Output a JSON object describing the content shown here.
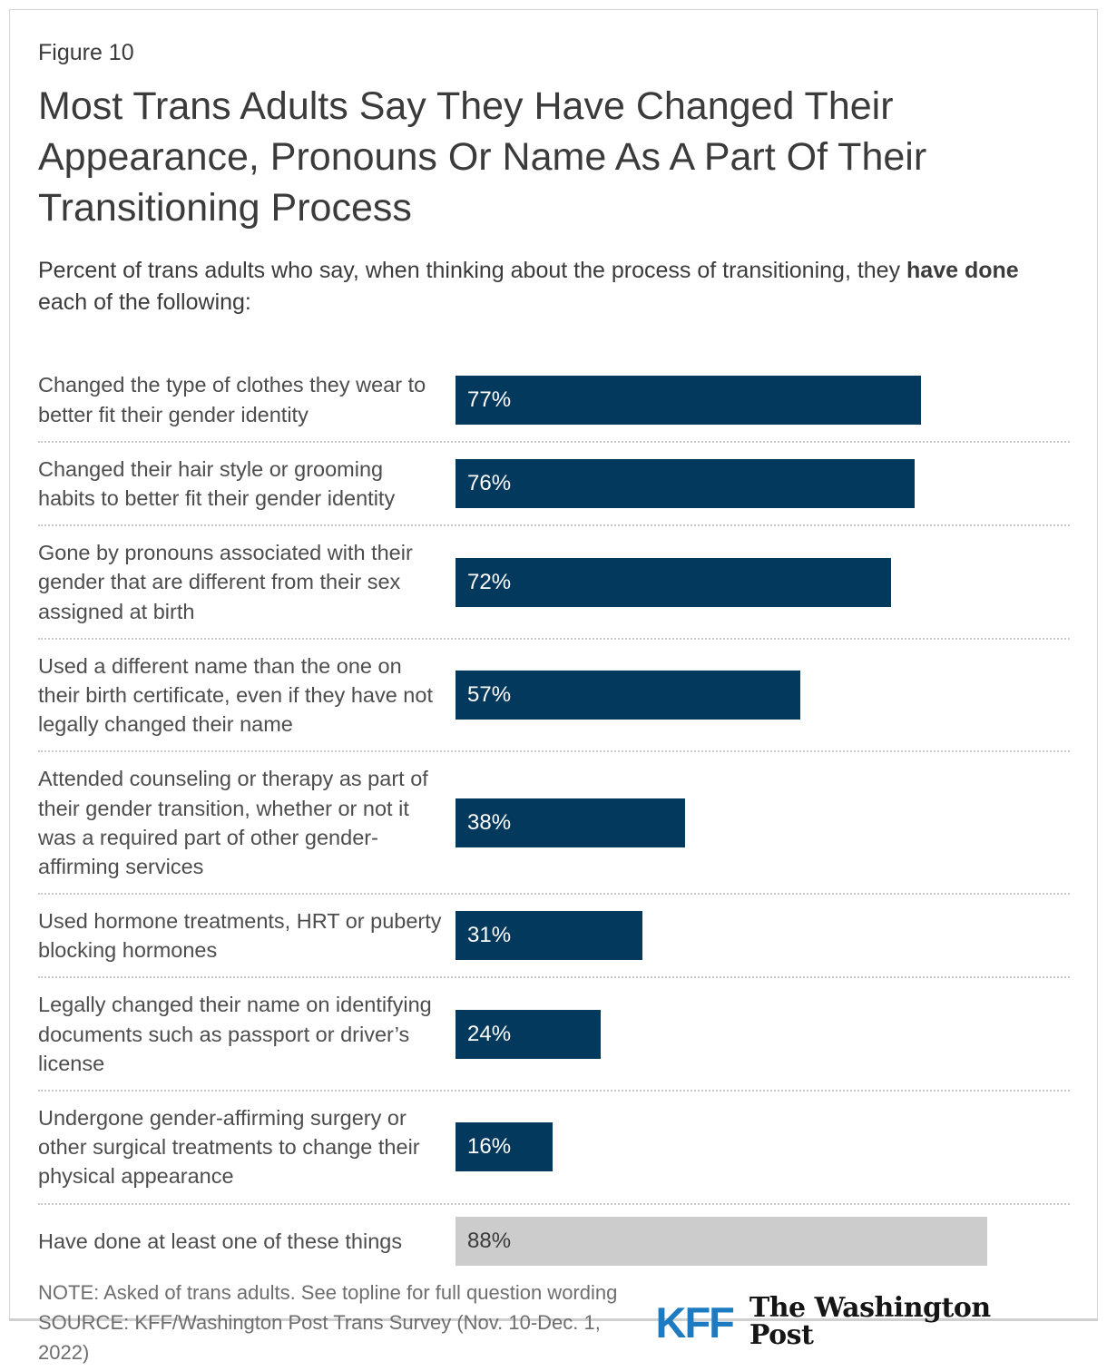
{
  "figure_label": "Figure 10",
  "title": "Most Trans Adults Say They Have Changed Their Appearance, Pronouns Or Name As A Part Of Their Transitioning Process",
  "subtitle": {
    "prefix": "Percent of trans adults who say, when thinking about the process of transitioning, they ",
    "bold": "have done",
    "suffix": " each of the following:"
  },
  "chart_data": {
    "type": "bar",
    "orientation": "horizontal",
    "unit": "%",
    "xlim": [
      0,
      100
    ],
    "grid": false,
    "title": "Most Trans Adults Say They Have Changed Their Appearance, Pronouns Or Name As A Part Of Their Transitioning Process",
    "categories": [
      "Changed the type of clothes they wear to better fit their gender identity",
      "Changed their hair style or grooming habits to better fit their gender identity",
      "Gone by pronouns associated with their gender that are different from their sex assigned at birth",
      "Used a different name than the one on their birth certificate, even if they have not legally changed their name",
      "Attended counseling or therapy as part of their gender transition, whether or not it was a required part of other gender-affirming services",
      "Used hormone treatments, HRT or puberty blocking hormones",
      "Legally changed their name on identifying documents such as passport or driver’s license",
      "Undergone gender-affirming surgery or other surgical treatments to change their physical appearance",
      "Have done at least one of these things"
    ],
    "values": [
      77,
      76,
      72,
      57,
      38,
      31,
      24,
      16,
      88
    ],
    "rows": [
      {
        "label": "Changed the type of clothes they wear to better fit their gender identity",
        "value": 77,
        "display": "77%",
        "variant": "default"
      },
      {
        "label": "Changed their hair style or grooming habits to better fit their gender identity",
        "value": 76,
        "display": "76%",
        "variant": "default"
      },
      {
        "label": "Gone by pronouns associated with their gender that are different from their sex assigned at birth",
        "value": 72,
        "display": "72%",
        "variant": "default"
      },
      {
        "label": "Used a different name than the one on their birth certificate, even if they have not legally changed their name",
        "value": 57,
        "display": "57%",
        "variant": "default"
      },
      {
        "label": "Attended counseling or therapy as part of their gender transition, whether or not it was a required part of other gender-affirming services",
        "value": 38,
        "display": "38%",
        "variant": "default"
      },
      {
        "label": "Used hormone treatments, HRT or puberty blocking hormones",
        "value": 31,
        "display": "31%",
        "variant": "default"
      },
      {
        "label": "Legally changed their name on identifying documents such as passport or driver’s license",
        "value": 24,
        "display": "24%",
        "variant": "default"
      },
      {
        "label": "Undergone gender-affirming surgery or other surgical treatments to change their physical appearance",
        "value": 16,
        "display": "16%",
        "variant": "default"
      },
      {
        "label": "Have done at least one of these things",
        "value": 88,
        "display": "88%",
        "variant": "summary"
      }
    ]
  },
  "colors": {
    "bar_default": "#04395E",
    "bar_summary": "#CCCCCC",
    "bar_value_default": "#FFFFFF",
    "bar_value_summary": "#3B3B3B",
    "kff_blue": "#1F7BC1",
    "wapo_black": "#151515"
  },
  "footer": {
    "note": "NOTE: Asked of trans adults. See topline for full question wording",
    "source": "SOURCE: KFF/Washington Post Trans Survey (Nov. 10-Dec. 1, 2022)",
    "logos": {
      "kff": "KFF",
      "washington_post": "The Washington Post"
    }
  }
}
